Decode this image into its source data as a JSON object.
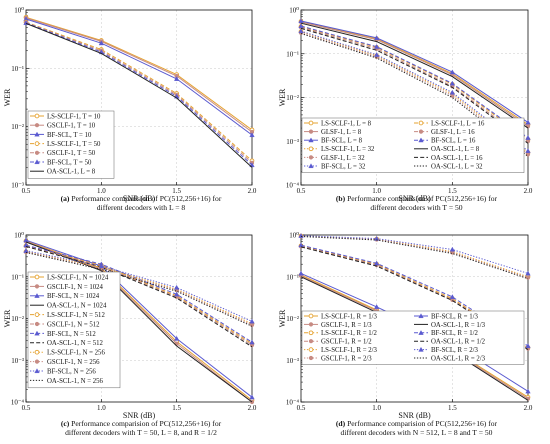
{
  "chart_data": [
    {
      "type": "line",
      "xlabel": "SNR (dB)",
      "ylabel": "WER",
      "x": [
        0.5,
        1.0,
        1.5,
        2.0
      ],
      "xticks": [
        "0.5",
        "1.0",
        "1.5",
        "2.0"
      ],
      "yscale": "log",
      "ylim": [
        0.001,
        1
      ],
      "yticks": [
        "10⁻³",
        "10⁻²",
        "10⁻¹",
        "10⁰"
      ],
      "caption": {
        "label": "(a)",
        "line1": "Performance comparision of PC(512,256+16) for",
        "line2": "different decoders with L = 8"
      },
      "legend_columns": 1,
      "series": [
        {
          "name": "LS-SCLF-1, T = 10",
          "color": "#e5a332",
          "dash": "solid",
          "marker": "circle-open",
          "values": [
            0.75,
            0.3,
            0.078,
            0.0088
          ]
        },
        {
          "name": "GSCLF-1, T = 10",
          "color": "#c78b83",
          "dash": "solid",
          "marker": "circle",
          "values": [
            0.73,
            0.29,
            0.074,
            0.0081
          ]
        },
        {
          "name": "BF-SCL, T = 10",
          "color": "#5a5ad0",
          "dash": "solid",
          "marker": "triangle",
          "values": [
            0.7,
            0.27,
            0.066,
            0.0072
          ]
        },
        {
          "name": "LS-SCLF-1, T = 50",
          "color": "#e5a332",
          "dash": "dash",
          "marker": "circle-open",
          "values": [
            0.62,
            0.21,
            0.037,
            0.0026
          ]
        },
        {
          "name": "GSCLF-1, T = 50",
          "color": "#c78b83",
          "dash": "dash",
          "marker": "circle",
          "values": [
            0.61,
            0.2,
            0.035,
            0.0024
          ]
        },
        {
          "name": "BF-SCL, T = 50",
          "color": "#5a5ad0",
          "dash": "dash",
          "marker": "triangle",
          "values": [
            0.6,
            0.19,
            0.033,
            0.0022
          ]
        },
        {
          "name": "OA-SCL-1, L = 8",
          "color": "#222222",
          "dash": "solid",
          "marker": "none",
          "values": [
            0.59,
            0.18,
            0.031,
            0.002
          ]
        }
      ]
    },
    {
      "type": "line",
      "xlabel": "SNR (dB)",
      "ylabel": "WER",
      "x": [
        0.5,
        1.0,
        1.5,
        2.0
      ],
      "xticks": [
        "0.5",
        "1.0",
        "1.5",
        "2.0"
      ],
      "yscale": "log",
      "ylim": [
        0.0001,
        1
      ],
      "yticks": [
        "10⁻⁴",
        "10⁻³",
        "10⁻²",
        "10⁻¹",
        "10⁰"
      ],
      "caption": {
        "label": "(b)",
        "line1": "Performance comparision of PC(512,256+16) for",
        "line2": "different decoders with T = 50"
      },
      "legend_columns": 2,
      "series": [
        {
          "name": "LS-SCLF-1, L = 8",
          "color": "#e5a332",
          "dash": "solid",
          "marker": "circle-open",
          "values": [
            0.55,
            0.22,
            0.035,
            0.0024
          ]
        },
        {
          "name": "GLSF-1, L = 8",
          "color": "#c78b83",
          "dash": "solid",
          "marker": "circle",
          "values": [
            0.53,
            0.21,
            0.033,
            0.0022
          ]
        },
        {
          "name": "BF-SCL, L = 8",
          "color": "#5a5ad0",
          "dash": "solid",
          "marker": "triangle",
          "values": [
            0.56,
            0.23,
            0.038,
            0.0027
          ]
        },
        {
          "name": "LS-SCLF-1, L = 32",
          "color": "#e5a332",
          "dash": "dot",
          "marker": "circle-open",
          "values": [
            0.32,
            0.09,
            0.012,
            0.00055
          ]
        },
        {
          "name": "GLSF-1, L = 32",
          "color": "#c78b83",
          "dash": "dot",
          "marker": "circle",
          "values": [
            0.3,
            0.085,
            0.011,
            0.0005
          ]
        },
        {
          "name": "BF-SCL, L = 32",
          "color": "#5a5ad0",
          "dash": "dot",
          "marker": "triangle",
          "values": [
            0.33,
            0.095,
            0.013,
            0.0006
          ]
        },
        {
          "name": "LS-SCLF-1, L = 16",
          "color": "#e5a332",
          "dash": "dash",
          "marker": "circle-open",
          "values": [
            0.42,
            0.14,
            0.02,
            0.0011
          ]
        },
        {
          "name": "GLSF-1, L = 16",
          "color": "#c78b83",
          "dash": "dash",
          "marker": "circle",
          "values": [
            0.4,
            0.13,
            0.018,
            0.001
          ]
        },
        {
          "name": "BF-SCL, L = 16",
          "color": "#5a5ad0",
          "dash": "dash",
          "marker": "triangle",
          "values": [
            0.43,
            0.145,
            0.021,
            0.0012
          ]
        },
        {
          "name": "OA-SCL-1, L = 8",
          "color": "#222222",
          "dash": "solid",
          "marker": "none",
          "values": [
            0.5,
            0.19,
            0.03,
            0.002
          ]
        },
        {
          "name": "OA-SCL-1, L = 16",
          "color": "#222222",
          "dash": "dash",
          "marker": "none",
          "values": [
            0.38,
            0.12,
            0.017,
            0.0009
          ]
        },
        {
          "name": "OA-SCL-1, L = 32",
          "color": "#222222",
          "dash": "dot",
          "marker": "none",
          "values": [
            0.29,
            0.08,
            0.01,
            0.00045
          ]
        }
      ]
    },
    {
      "type": "line",
      "xlabel": "SNR (dB)",
      "ylabel": "WER",
      "x": [
        0.5,
        1.0,
        1.5,
        2.0
      ],
      "xticks": [
        "0.5",
        "1.0",
        "1.5",
        "2.0"
      ],
      "yscale": "log",
      "ylim": [
        0.0001,
        1
      ],
      "yticks": [
        "10⁻⁴",
        "10⁻³",
        "10⁻²",
        "10⁻¹",
        "10⁰"
      ],
      "caption": {
        "label": "(c)",
        "line1": "Performance comparision of PC(512,256+16) for",
        "line2": "different decoders with T = 50, L = 8, and R = 1/2"
      },
      "legend_columns": 1,
      "series": [
        {
          "name": "LS-SCLF-1, N = 1024",
          "color": "#e5a332",
          "dash": "solid",
          "marker": "circle-open",
          "values": [
            0.72,
            0.16,
            0.0028,
            0.00011
          ]
        },
        {
          "name": "GSCLF-1, N = 1024",
          "color": "#c78b83",
          "dash": "solid",
          "marker": "circle",
          "values": [
            0.7,
            0.15,
            0.0025,
            0.0001
          ]
        },
        {
          "name": "BF-SCL, N = 1024",
          "color": "#5a5ad0",
          "dash": "solid",
          "marker": "triangle",
          "values": [
            0.75,
            0.18,
            0.0033,
            0.00013
          ]
        },
        {
          "name": "OA-SCL-1, N = 1024",
          "color": "#222222",
          "dash": "solid",
          "marker": "none",
          "values": [
            0.68,
            0.14,
            0.0022,
            0.0001
          ]
        },
        {
          "name": "LS-SCLF-1, N = 512",
          "color": "#e5a332",
          "dash": "dash",
          "marker": "circle-open",
          "values": [
            0.55,
            0.19,
            0.035,
            0.0025
          ]
        },
        {
          "name": "GSCLF-1, N = 512",
          "color": "#c78b83",
          "dash": "dash",
          "marker": "circle",
          "values": [
            0.54,
            0.18,
            0.033,
            0.0023
          ]
        },
        {
          "name": "BF-SCL, N = 512",
          "color": "#5a5ad0",
          "dash": "dash",
          "marker": "triangle",
          "values": [
            0.57,
            0.2,
            0.038,
            0.0027
          ]
        },
        {
          "name": "OA-SCL-1, N = 512",
          "color": "#222222",
          "dash": "dash",
          "marker": "none",
          "values": [
            0.53,
            0.17,
            0.031,
            0.0021
          ]
        },
        {
          "name": "LS-SCLF-1, N = 256",
          "color": "#e5a332",
          "dash": "dot",
          "marker": "circle-open",
          "values": [
            0.4,
            0.17,
            0.05,
            0.0075
          ]
        },
        {
          "name": "GSCLF-1, N = 256",
          "color": "#c78b83",
          "dash": "dot",
          "marker": "circle",
          "values": [
            0.39,
            0.16,
            0.048,
            0.007
          ]
        },
        {
          "name": "BF-SCL, N = 256",
          "color": "#5a5ad0",
          "dash": "dot",
          "marker": "triangle",
          "values": [
            0.42,
            0.18,
            0.055,
            0.0085
          ]
        },
        {
          "name": "OA-SCL-1, N = 256",
          "color": "#222222",
          "dash": "dot",
          "marker": "none",
          "values": [
            0.38,
            0.15,
            0.045,
            0.0065
          ]
        }
      ]
    },
    {
      "type": "line",
      "xlabel": "SNR (dB)",
      "ylabel": "WER",
      "x": [
        0.5,
        1.0,
        1.5,
        2.0
      ],
      "xticks": [
        "0.5",
        "1.0",
        "1.5",
        "2.0"
      ],
      "yscale": "log",
      "ylim": [
        0.0001,
        1
      ],
      "yticks": [
        "10⁻⁴",
        "10⁻³",
        "10⁻²",
        "10⁻¹",
        "10⁰"
      ],
      "caption": {
        "label": "(d)",
        "line1": "Performance comparision of PC(512,256+16) for",
        "line2": "different decoders with N = 512, L = 8 and T = 50"
      },
      "legend_columns": 2,
      "series": [
        {
          "name": "LS-SCLF-1, R = 1/3",
          "color": "#e5a332",
          "dash": "solid",
          "marker": "circle-open",
          "values": [
            0.11,
            0.016,
            0.0018,
            0.00013
          ]
        },
        {
          "name": "GSCLF-1, R = 1/3",
          "color": "#c78b83",
          "dash": "solid",
          "marker": "circle",
          "values": [
            0.105,
            0.015,
            0.0017,
            0.00012
          ]
        },
        {
          "name": "LS-SCLF-1, R = 1/2",
          "color": "#e5a332",
          "dash": "dash",
          "marker": "circle-open",
          "values": [
            0.55,
            0.2,
            0.03,
            0.002
          ]
        },
        {
          "name": "GSCLF-1, R = 1/2",
          "color": "#c78b83",
          "dash": "dash",
          "marker": "circle",
          "values": [
            0.53,
            0.19,
            0.028,
            0.0019
          ]
        },
        {
          "name": "LS-SCLF-1, R = 2/3",
          "color": "#e5a332",
          "dash": "dot",
          "marker": "circle-open",
          "values": [
            0.95,
            0.8,
            0.4,
            0.1
          ]
        },
        {
          "name": "GSCLF-1, R = 2/3",
          "color": "#c78b83",
          "dash": "dot",
          "marker": "circle",
          "values": [
            0.93,
            0.78,
            0.38,
            0.095
          ]
        },
        {
          "name": "BF-SCL, R = 1/3",
          "color": "#5a5ad0",
          "dash": "solid",
          "marker": "triangle",
          "values": [
            0.12,
            0.019,
            0.0025,
            0.00018
          ]
        },
        {
          "name": "OA-SCL-1, R = 1/3",
          "color": "#222222",
          "dash": "solid",
          "marker": "none",
          "values": [
            0.1,
            0.014,
            0.0016,
            0.00011
          ]
        },
        {
          "name": "BF-SCL, R = 1/2",
          "color": "#5a5ad0",
          "dash": "dash",
          "marker": "triangle",
          "values": [
            0.57,
            0.21,
            0.033,
            0.0022
          ]
        },
        {
          "name": "OA-SCL-1, R = 1/2",
          "color": "#222222",
          "dash": "dash",
          "marker": "none",
          "values": [
            0.52,
            0.18,
            0.027,
            0.0018
          ]
        },
        {
          "name": "BF-SCL, R = 2/3",
          "color": "#5a5ad0",
          "dash": "dot",
          "marker": "triangle",
          "values": [
            0.96,
            0.82,
            0.45,
            0.12
          ]
        },
        {
          "name": "OA-SCL-1, R = 2/3",
          "color": "#222222",
          "dash": "dot",
          "marker": "none",
          "values": [
            0.92,
            0.76,
            0.36,
            0.09
          ]
        }
      ]
    }
  ]
}
